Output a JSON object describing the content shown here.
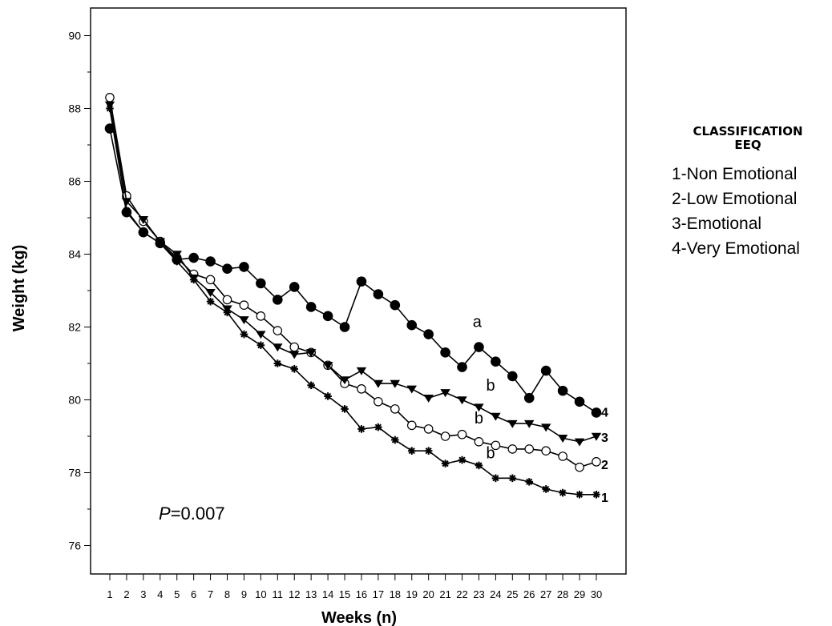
{
  "chart_data": {
    "type": "line",
    "xlabel": "Weeks (n)",
    "ylabel": "Weight (kg)",
    "xlim": [
      0,
      31
    ],
    "ylim": [
      75,
      91
    ],
    "x": [
      1,
      2,
      3,
      4,
      5,
      6,
      7,
      8,
      9,
      10,
      11,
      12,
      13,
      14,
      15,
      16,
      17,
      18,
      19,
      20,
      21,
      22,
      23,
      24,
      25,
      26,
      27,
      28,
      29,
      30
    ],
    "y_ticks": [
      76,
      78,
      80,
      82,
      84,
      86,
      88,
      90
    ],
    "grid": false,
    "legend": {
      "position": "right",
      "title_line1": "CLASSIFICATION",
      "title_line2": "EEQ",
      "entries": [
        "1-Non Emotional",
        "2-Low Emotional",
        "3-Emotional",
        "4-Very Emotional"
      ]
    },
    "series": [
      {
        "marker": "star",
        "end_label": "1",
        "group_letter": "b",
        "values": [
          88.0,
          85.2,
          84.6,
          84.3,
          83.8,
          83.3,
          82.7,
          82.4,
          81.8,
          81.5,
          81.0,
          80.85,
          80.4,
          80.1,
          79.75,
          79.2,
          79.25,
          78.9,
          78.6,
          78.6,
          78.25,
          78.35,
          78.2,
          77.85,
          77.85,
          77.75,
          77.55,
          77.45,
          77.4,
          77.4
        ]
      },
      {
        "marker": "open-circle",
        "end_label": "2",
        "group_letter": "b",
        "values": [
          88.3,
          85.6,
          84.9,
          84.35,
          83.9,
          83.45,
          83.3,
          82.75,
          82.6,
          82.3,
          81.9,
          81.45,
          81.3,
          80.95,
          80.45,
          80.3,
          79.95,
          79.75,
          79.3,
          79.2,
          79.0,
          79.05,
          78.85,
          78.75,
          78.65,
          78.65,
          78.6,
          78.45,
          78.15,
          78.3
        ]
      },
      {
        "marker": "filled-triangle-down",
        "end_label": "3",
        "group_letter": "b",
        "values": [
          88.1,
          85.45,
          84.95,
          84.35,
          84.0,
          83.35,
          82.95,
          82.5,
          82.2,
          81.8,
          81.45,
          81.25,
          81.3,
          80.95,
          80.55,
          80.8,
          80.45,
          80.45,
          80.3,
          80.05,
          80.2,
          80.0,
          79.8,
          79.55,
          79.35,
          79.35,
          79.25,
          78.95,
          78.85,
          79.0
        ]
      },
      {
        "marker": "filled-circle",
        "end_label": "4",
        "group_letter": "a",
        "values": [
          87.45,
          85.15,
          84.6,
          84.3,
          83.85,
          83.9,
          83.8,
          83.6,
          83.65,
          83.2,
          82.75,
          83.1,
          82.55,
          82.3,
          82.0,
          83.25,
          82.9,
          82.6,
          82.05,
          81.8,
          81.3,
          80.9,
          81.45,
          81.05,
          80.65,
          80.05,
          80.8,
          80.25,
          79.95,
          79.65
        ]
      }
    ],
    "annotations": {
      "p_letter": "P",
      "p_value": "=0.007",
      "letters": [
        {
          "text": "a",
          "x": 22.9,
          "y": 82.0
        },
        {
          "text": "b",
          "x": 23.7,
          "y": 80.25
        },
        {
          "text": "b",
          "x": 23.0,
          "y": 79.35
        },
        {
          "text": "b",
          "x": 23.7,
          "y": 78.4
        }
      ]
    }
  }
}
